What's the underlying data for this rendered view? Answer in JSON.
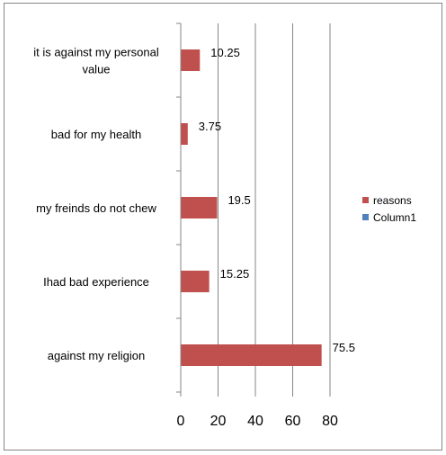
{
  "chart_data": {
    "type": "bar",
    "orientation": "horizontal",
    "categories": [
      "it is against my personal value",
      "bad for my health",
      "my freinds do not chew",
      "Ihad bad experience",
      "against my religion"
    ],
    "series": [
      {
        "name": "reasons",
        "values": [
          10.25,
          3.75,
          19.5,
          15.25,
          75.5
        ],
        "color": "#C0504D"
      },
      {
        "name": "Column1",
        "values": [
          null,
          null,
          null,
          null,
          null
        ],
        "color": "#4F81BD"
      }
    ],
    "data_labels": [
      "10.25",
      "3.75",
      "19.5",
      "15.25",
      "75.5"
    ],
    "x_ticks": [
      0,
      20,
      40,
      60,
      80
    ],
    "xlim": [
      0,
      80
    ],
    "grid": "vertical",
    "legend": "right",
    "title": "",
    "xlabel": "",
    "ylabel": ""
  }
}
